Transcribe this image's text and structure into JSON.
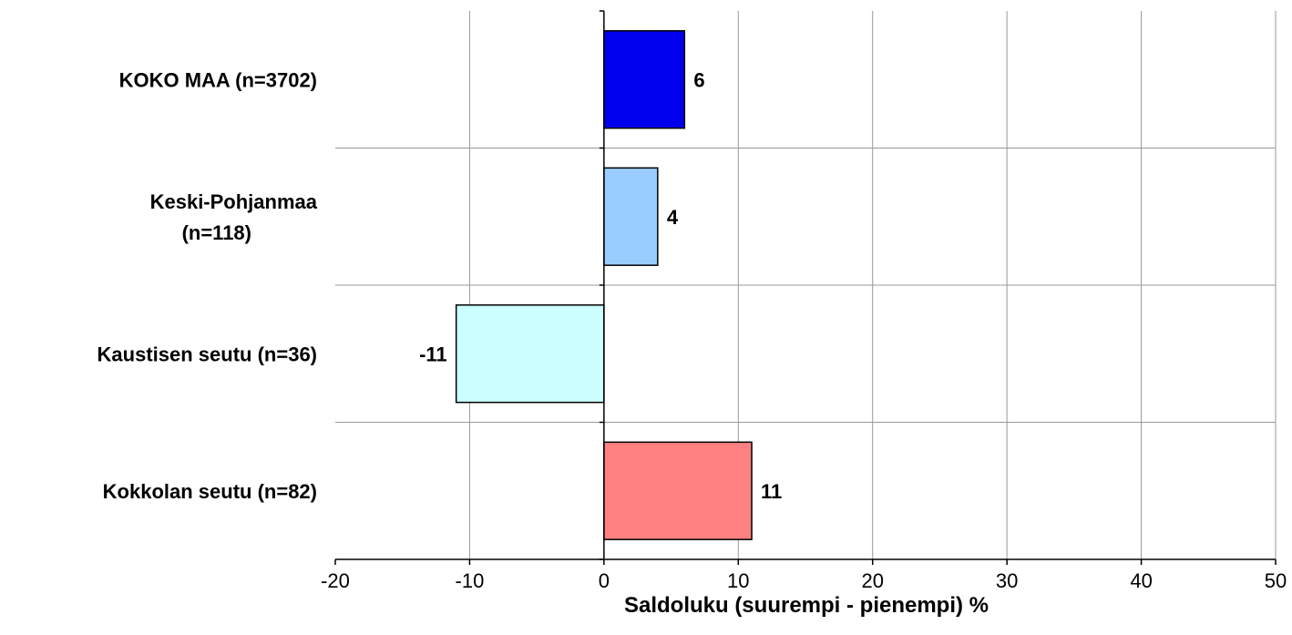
{
  "chart_data": {
    "type": "bar",
    "orientation": "horizontal",
    "title": "",
    "categories": [
      "KOKO MAA (n=3702)",
      "Keski-Pohjanmaa\n(n=118)",
      "Kaustisen seutu (n=36)",
      "Kokkolan seutu (n=82)"
    ],
    "values": [
      6,
      4,
      -11,
      11
    ],
    "bar_colors": [
      "#0000ee",
      "#99ccff",
      "#ccffff",
      "#ff8080"
    ],
    "data_labels": [
      "6",
      "4",
      "-11",
      "11"
    ],
    "xlabel": "Saldoluku (suurempi - pienempi) %",
    "ylabel": "",
    "xlim": [
      -20,
      50
    ],
    "xticks": [
      -20,
      -10,
      0,
      10,
      20,
      30,
      40,
      50
    ],
    "xtick_labels": [
      "-20",
      "-10",
      "0",
      "10",
      "20",
      "30",
      "40",
      "50"
    ],
    "grid": true,
    "legend": "none"
  }
}
